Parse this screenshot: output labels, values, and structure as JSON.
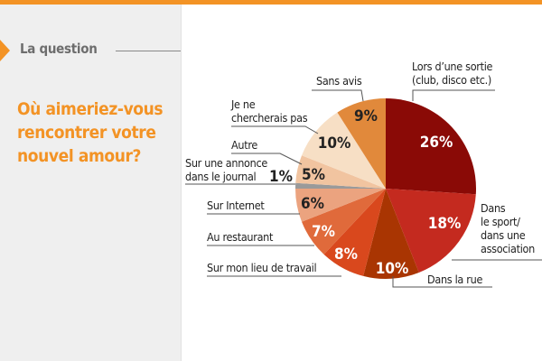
{
  "header": {
    "kicker": "La question",
    "question": "Où aimeriez-vous rencontrer votre nouvel amour?"
  },
  "colors": {
    "accent": "#f39325"
  },
  "chart_data": {
    "type": "pie",
    "start": "12 o'clock, clockwise",
    "slices": [
      {
        "label": "Lors d’une sortie (club, disco etc.)",
        "label_lines": [
          "Lors d’une sortie",
          "(club, disco etc.)"
        ],
        "value": 26,
        "text": "26%",
        "color": "#8a0a06",
        "text_color": "#ffffff"
      },
      {
        "label": "Dans le sport/ dans une association",
        "label_lines": [
          "Dans",
          "le sport/",
          "dans une",
          "association"
        ],
        "value": 18,
        "text": "18%",
        "color": "#c42a1f",
        "text_color": "#ffffff"
      },
      {
        "label": "Dans la rue",
        "label_lines": [
          "Dans la rue"
        ],
        "value": 10,
        "text": "10%",
        "color": "#a93502",
        "text_color": "#ffffff"
      },
      {
        "label": "Sur mon lieu de travail",
        "label_lines": [
          "Sur mon lieu de travail"
        ],
        "value": 8,
        "text": "8%",
        "color": "#d9481d",
        "text_color": "#ffffff"
      },
      {
        "label": "Au restaurant",
        "label_lines": [
          "Au restaurant"
        ],
        "value": 7,
        "text": "7%",
        "color": "#e06a3b",
        "text_color": "#ffffff"
      },
      {
        "label": "Sur Internet",
        "label_lines": [
          "Sur Internet"
        ],
        "value": 6,
        "text": "6%",
        "color": "#eba37f",
        "text_color": "#222222"
      },
      {
        "label": "Sur une annonce dans le journal",
        "label_lines": [
          "Sur une annonce",
          "dans le journal"
        ],
        "value": 1,
        "text": "1%",
        "color": "#9a9a9a",
        "text_color": "#222222"
      },
      {
        "label": "Autre",
        "label_lines": [
          "Autre"
        ],
        "value": 5,
        "text": "5%",
        "color": "#f1c4a0",
        "text_color": "#222222"
      },
      {
        "label": "Je ne chercherais pas",
        "label_lines": [
          "Je ne",
          "chercherais pas"
        ],
        "value": 10,
        "text": "10%",
        "color": "#f7dfc5",
        "text_color": "#222222"
      },
      {
        "label": "Sans avis",
        "label_lines": [
          "Sans avis"
        ],
        "value": 9,
        "text": "9%",
        "color": "#e1893b",
        "text_color": "#222222"
      }
    ]
  }
}
